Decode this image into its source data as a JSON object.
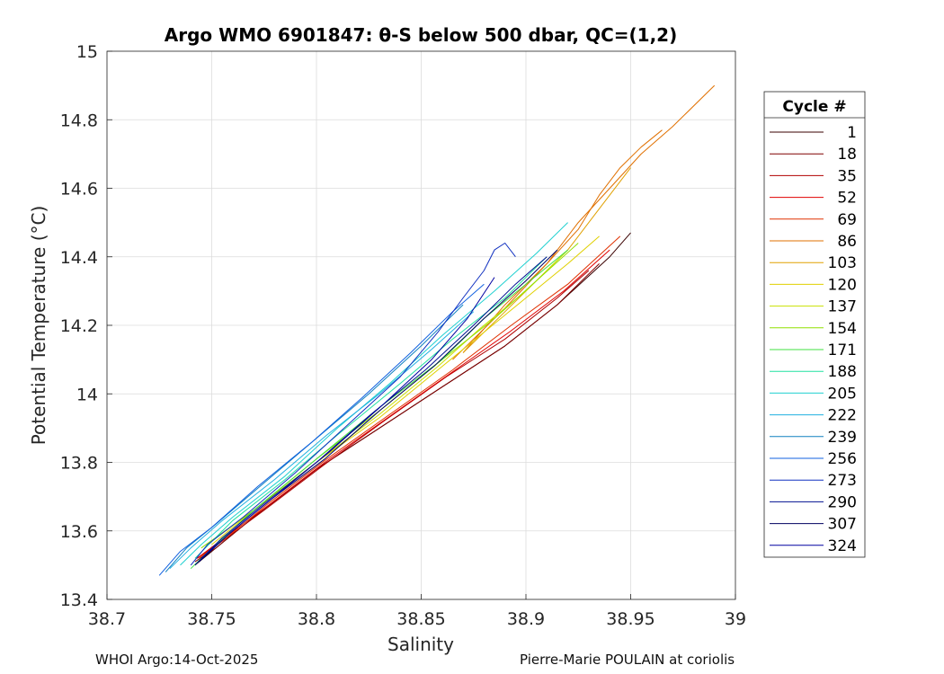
{
  "chart_data": {
    "type": "line",
    "title": "Argo WMO 6901847: θ-S below 500 dbar,  QC=(1,2)",
    "xlabel": "Salinity",
    "ylabel": "Potential Temperature (°C)",
    "xlim": [
      38.7,
      39.0
    ],
    "ylim": [
      13.4,
      15.0
    ],
    "xticks": [
      38.7,
      38.75,
      38.8,
      38.85,
      38.9,
      38.95,
      39.0
    ],
    "xtick_labels": [
      "38.7",
      "38.75",
      "38.8",
      "38.85",
      "38.9",
      "38.95",
      "39"
    ],
    "yticks": [
      13.4,
      13.6,
      13.8,
      14.0,
      14.2,
      14.4,
      14.6,
      14.8,
      15.0
    ],
    "ytick_labels": [
      "13.4",
      "13.6",
      "13.8",
      "14",
      "14.2",
      "14.4",
      "14.6",
      "14.8",
      "15"
    ],
    "grid": true,
    "legend": {
      "title": "Cycle #",
      "placement": "right-outside",
      "entries": [
        {
          "label": "1",
          "color": "#3a0000"
        },
        {
          "label": "18",
          "color": "#800000"
        },
        {
          "label": "35",
          "color": "#b00000"
        },
        {
          "label": "52",
          "color": "#e00000"
        },
        {
          "label": "69",
          "color": "#e03000"
        },
        {
          "label": "86",
          "color": "#e07000"
        },
        {
          "label": "103",
          "color": "#e0a000"
        },
        {
          "label": "120",
          "color": "#e0d000"
        },
        {
          "label": "137",
          "color": "#c8e000"
        },
        {
          "label": "154",
          "color": "#90e000"
        },
        {
          "label": "171",
          "color": "#40e040"
        },
        {
          "label": "188",
          "color": "#20e0a0"
        },
        {
          "label": "205",
          "color": "#20d0d0"
        },
        {
          "label": "222",
          "color": "#20b0e0"
        },
        {
          "label": "239",
          "color": "#1080c0"
        },
        {
          "label": "256",
          "color": "#1060e0"
        },
        {
          "label": "273",
          "color": "#1030c0"
        },
        {
          "label": "290",
          "color": "#001090"
        },
        {
          "label": "307",
          "color": "#000060"
        },
        {
          "label": "324",
          "color": "#0000a0"
        }
      ]
    },
    "series": [
      {
        "color": "#3a0000",
        "x": [
          38.742,
          38.75,
          38.77,
          38.8,
          38.83,
          38.86,
          38.89,
          38.915,
          38.94,
          38.95
        ],
        "y": [
          13.5,
          13.54,
          13.64,
          13.78,
          13.9,
          14.02,
          14.14,
          14.26,
          14.4,
          14.47
        ]
      },
      {
        "color": "#800000",
        "x": [
          38.742,
          38.752,
          38.772,
          38.8,
          38.83,
          38.86,
          38.89,
          38.915,
          38.935
        ],
        "y": [
          13.51,
          13.55,
          13.65,
          13.78,
          13.9,
          14.02,
          14.14,
          14.26,
          14.38
        ]
      },
      {
        "color": "#b00000",
        "x": [
          38.743,
          38.755,
          38.775,
          38.803,
          38.832,
          38.862,
          38.89,
          38.915,
          38.93
        ],
        "y": [
          13.52,
          13.57,
          13.66,
          13.79,
          13.92,
          14.05,
          14.16,
          14.28,
          14.36
        ]
      },
      {
        "color": "#e00000",
        "x": [
          38.743,
          38.756,
          38.776,
          38.804,
          38.834,
          38.864,
          38.892,
          38.918,
          38.94
        ],
        "y": [
          13.52,
          13.58,
          13.67,
          13.8,
          13.93,
          14.06,
          14.18,
          14.3,
          14.42
        ]
      },
      {
        "color": "#e03000",
        "x": [
          38.744,
          38.757,
          38.777,
          38.805,
          38.835,
          38.865,
          38.893,
          38.92,
          38.945
        ],
        "y": [
          13.52,
          13.58,
          13.68,
          13.81,
          13.94,
          14.07,
          14.2,
          14.32,
          14.46
        ]
      },
      {
        "color": "#e07000",
        "x": [
          38.865,
          38.89,
          38.91,
          38.925,
          38.94,
          38.955,
          38.97,
          38.99
        ],
        "y": [
          14.1,
          14.25,
          14.38,
          14.5,
          14.6,
          14.7,
          14.78,
          14.9
        ]
      },
      {
        "color": "#e07000",
        "x": [
          38.87,
          38.89,
          38.91,
          38.925,
          38.935,
          38.945,
          38.955,
          38.965
        ],
        "y": [
          14.12,
          14.26,
          14.38,
          14.48,
          14.58,
          14.66,
          14.72,
          14.77
        ]
      },
      {
        "color": "#e0a000",
        "x": [
          38.87,
          38.89,
          38.905,
          38.92,
          38.93,
          38.94,
          38.95
        ],
        "y": [
          14.12,
          14.24,
          14.33,
          14.42,
          14.5,
          14.58,
          14.66
        ]
      },
      {
        "color": "#e0d000",
        "x": [
          38.75,
          38.77,
          38.8,
          38.83,
          38.86,
          38.88,
          38.9,
          38.92,
          38.935
        ],
        "y": [
          13.56,
          13.66,
          13.8,
          13.93,
          14.08,
          14.18,
          14.28,
          14.38,
          14.46
        ]
      },
      {
        "color": "#c8e000",
        "x": [
          38.75,
          38.772,
          38.8,
          38.83,
          38.858,
          38.878,
          38.9,
          38.92
        ],
        "y": [
          13.57,
          13.67,
          13.8,
          13.94,
          14.08,
          14.19,
          14.3,
          14.42
        ]
      },
      {
        "color": "#90e000",
        "x": [
          38.745,
          38.77,
          38.8,
          38.83,
          38.86,
          38.885,
          38.905,
          38.925
        ],
        "y": [
          13.55,
          13.66,
          13.81,
          13.95,
          14.1,
          14.22,
          14.33,
          14.44
        ]
      },
      {
        "color": "#40e040",
        "x": [
          38.74,
          38.745,
          38.752,
          38.77,
          38.8,
          38.83,
          38.86,
          38.88,
          38.9,
          38.92
        ],
        "y": [
          13.49,
          13.52,
          13.56,
          13.66,
          13.81,
          13.96,
          14.1,
          14.22,
          14.32,
          14.42
        ]
      },
      {
        "color": "#20e0a0",
        "x": [
          38.742,
          38.76,
          38.785,
          38.81,
          38.84,
          38.865,
          38.89,
          38.91
        ],
        "y": [
          13.52,
          13.63,
          13.75,
          13.88,
          14.03,
          14.16,
          14.28,
          14.4
        ]
      },
      {
        "color": "#20d0d0",
        "x": [
          38.735,
          38.745,
          38.76,
          38.785,
          38.81,
          38.835,
          38.86,
          38.885,
          38.905,
          38.92
        ],
        "y": [
          13.5,
          13.56,
          13.64,
          13.76,
          13.9,
          14.03,
          14.17,
          14.3,
          14.41,
          14.5
        ]
      },
      {
        "color": "#20b0e0",
        "x": [
          38.73,
          38.74,
          38.755,
          38.78,
          38.805,
          38.83,
          38.855,
          38.875
        ],
        "y": [
          13.49,
          13.55,
          13.63,
          13.75,
          13.88,
          14.0,
          14.13,
          14.24
        ]
      },
      {
        "color": "#1080c0",
        "x": [
          38.728,
          38.738,
          38.752,
          38.775,
          38.8,
          38.825,
          38.85,
          38.87
        ],
        "y": [
          13.48,
          13.55,
          13.62,
          13.74,
          13.87,
          14.0,
          14.14,
          14.26
        ]
      },
      {
        "color": "#1060e0",
        "x": [
          38.725,
          38.735,
          38.75,
          38.772,
          38.798,
          38.822,
          38.845,
          38.865,
          38.88
        ],
        "y": [
          13.47,
          13.54,
          13.61,
          13.73,
          13.86,
          13.99,
          14.12,
          14.24,
          14.32
        ]
      },
      {
        "color": "#1030c0",
        "x": [
          38.74,
          38.748,
          38.765,
          38.79,
          38.815,
          38.84,
          38.858,
          38.87,
          38.88,
          38.885,
          38.89,
          38.895
        ],
        "y": [
          13.5,
          13.56,
          13.64,
          13.77,
          13.91,
          14.05,
          14.18,
          14.28,
          14.36,
          14.42,
          14.44,
          14.4
        ]
      },
      {
        "color": "#001090",
        "x": [
          38.742,
          38.755,
          38.775,
          38.8,
          38.826,
          38.852,
          38.875,
          38.895,
          38.91
        ],
        "y": [
          13.5,
          13.58,
          13.68,
          13.8,
          13.94,
          14.07,
          14.2,
          14.32,
          14.4
        ]
      },
      {
        "color": "#000060",
        "x": [
          38.744,
          38.758,
          38.778,
          38.804,
          38.83,
          38.856,
          38.88,
          38.9,
          38.915
        ],
        "y": [
          13.51,
          13.59,
          13.69,
          13.81,
          13.95,
          14.08,
          14.22,
          14.33,
          14.42
        ]
      },
      {
        "color": "#0000a0",
        "x": [
          38.745,
          38.76,
          38.78,
          38.806,
          38.832,
          38.855,
          38.872,
          38.885
        ],
        "y": [
          13.52,
          13.6,
          13.7,
          13.83,
          13.97,
          14.1,
          14.22,
          14.34
        ]
      }
    ]
  },
  "footer": {
    "left": "WHOI Argo:14-Oct-2025",
    "right": "Pierre-Marie POULAIN at coriolis"
  }
}
